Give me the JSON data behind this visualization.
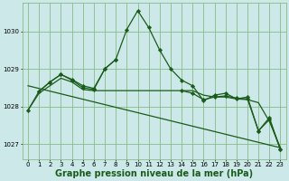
{
  "background_color": "#cce8e8",
  "grid_color": "#88bb88",
  "line_color": "#1a5c1a",
  "xlabel": "Graphe pression niveau de la mer (hPa)",
  "xlabel_fontsize": 7,
  "xlim": [
    -0.5,
    23.5
  ],
  "ylim": [
    1026.6,
    1030.75
  ],
  "yticks": [
    1027,
    1028,
    1029,
    1030
  ],
  "xticks": [
    0,
    1,
    2,
    3,
    4,
    5,
    6,
    7,
    8,
    9,
    10,
    11,
    12,
    13,
    14,
    15,
    16,
    17,
    18,
    19,
    20,
    21,
    22,
    23
  ],
  "series": [
    {
      "x": [
        0,
        23
      ],
      "y": [
        1028.55,
        1026.9
      ],
      "marker": null,
      "linewidth": 0.9
    },
    {
      "x": [
        0,
        1,
        2,
        3,
        4,
        5,
        6,
        7,
        8,
        9,
        10,
        11,
        12,
        13,
        14,
        15,
        16,
        17,
        18,
        19,
        20,
        21,
        22,
        23
      ],
      "y": [
        1027.9,
        1028.4,
        1028.65,
        1028.85,
        1028.7,
        1028.5,
        1028.45,
        1029.0,
        1029.25,
        1030.05,
        1030.55,
        1030.1,
        1029.5,
        1029.0,
        1028.7,
        1028.55,
        1028.15,
        1028.3,
        1028.35,
        1028.2,
        1028.25,
        1027.35,
        1027.7,
        1026.85
      ],
      "marker": "D",
      "markersize": 2.2,
      "linewidth": 0.9
    },
    {
      "x": [
        1,
        2,
        3,
        4,
        5,
        6,
        7,
        8
      ],
      "y": [
        1028.4,
        1028.65,
        1028.85,
        1028.72,
        1028.55,
        1028.48,
        1029.0,
        1029.25
      ],
      "marker": "D",
      "markersize": 2.2,
      "linewidth": 0.9
    },
    {
      "x": [
        0,
        1,
        2,
        3,
        4,
        5,
        6,
        7,
        8,
        9,
        10,
        11,
        12,
        13,
        14,
        15,
        16,
        17,
        18,
        19,
        20,
        21,
        22,
        23
      ],
      "y": [
        1027.9,
        1028.35,
        1028.55,
        1028.75,
        1028.65,
        1028.45,
        1028.42,
        1028.42,
        1028.42,
        1028.42,
        1028.42,
        1028.42,
        1028.42,
        1028.42,
        1028.42,
        1028.42,
        1028.3,
        1028.25,
        1028.25,
        1028.2,
        1028.18,
        1028.1,
        1027.6,
        1026.9
      ],
      "marker": null,
      "linewidth": 0.9
    },
    {
      "x": [
        14,
        15,
        16,
        17,
        18,
        19,
        20,
        21,
        22,
        23
      ],
      "y": [
        1028.42,
        1028.35,
        1028.18,
        1028.25,
        1028.28,
        1028.22,
        1028.2,
        1027.35,
        1027.65,
        1026.85
      ],
      "marker": "D",
      "markersize": 2.2,
      "linewidth": 0.9
    }
  ]
}
